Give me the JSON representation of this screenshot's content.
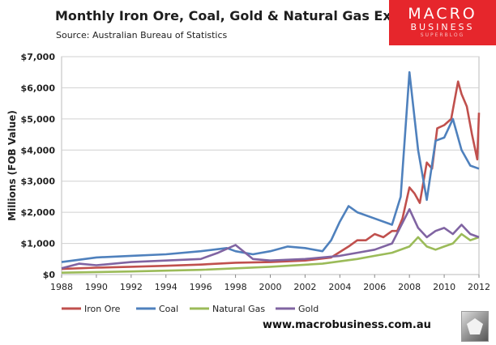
{
  "header": {
    "title": "Monthly Iron Ore, Coal, Gold & Natural Gas Exports",
    "source": "Source:  Australian Bureau of Statistics"
  },
  "logo": {
    "line1": "MACRO",
    "line2": "BUSINESS",
    "line3": "SUPERBLOG"
  },
  "footer": {
    "url": "www.macrobusiness.com.au"
  },
  "badge": {
    "icon": "wolf-icon"
  },
  "chart_data": {
    "type": "line",
    "title": "Monthly Iron Ore, Coal, Gold & Natural Gas Exports",
    "ylabel": "Millions (FOB Value)",
    "xlabel": "",
    "xlim": [
      1988,
      2012
    ],
    "ylim": [
      0,
      7000
    ],
    "x_ticks": [
      1988,
      1990,
      1992,
      1994,
      1996,
      1998,
      2000,
      2002,
      2004,
      2006,
      2008,
      2010,
      2012
    ],
    "y_ticks": [
      0,
      1000,
      2000,
      3000,
      4000,
      5000,
      6000,
      7000
    ],
    "y_tick_labels": [
      "$0",
      "$1,000",
      "$2,000",
      "$3,000",
      "$4,000",
      "$5,000",
      "$6,000",
      "$7,000"
    ],
    "grid": "horizontal",
    "legend": "bottom",
    "series": [
      {
        "name": "Iron Ore",
        "color": "#c0504d",
        "x": [
          1988,
          1990,
          1992,
          1994,
          1996,
          1998,
          2000,
          2002,
          2003.5,
          2004.5,
          2005,
          2005.5,
          2006,
          2006.5,
          2007,
          2007.3,
          2007.6,
          2008,
          2008.3,
          2008.6,
          2009,
          2009.3,
          2009.6,
          2010,
          2010.4,
          2010.8,
          2011,
          2011.3,
          2011.6,
          2011.9,
          2012
        ],
        "values": [
          180,
          220,
          250,
          280,
          320,
          380,
          400,
          450,
          550,
          900,
          1100,
          1100,
          1300,
          1200,
          1400,
          1400,
          1800,
          2800,
          2600,
          2300,
          3600,
          3400,
          4700,
          4800,
          5000,
          6200,
          5800,
          5400,
          4500,
          3700,
          5200
        ]
      },
      {
        "name": "Coal",
        "color": "#4f81bd",
        "x": [
          1988,
          1990,
          1992,
          1994,
          1996,
          1997.5,
          1998,
          1999,
          2000,
          2001,
          2002,
          2003,
          2003.5,
          2004,
          2004.5,
          2005,
          2006,
          2007,
          2007.5,
          2008,
          2008.5,
          2009,
          2009.5,
          2010,
          2010.5,
          2011,
          2011.5,
          2012
        ],
        "values": [
          400,
          550,
          600,
          650,
          750,
          850,
          750,
          650,
          750,
          900,
          850,
          750,
          1100,
          1700,
          2200,
          2000,
          1800,
          1600,
          2500,
          6500,
          4000,
          2400,
          4300,
          4400,
          5000,
          4000,
          3500,
          3400
        ]
      },
      {
        "name": "Natural Gas",
        "color": "#9bbb59",
        "x": [
          1988,
          1992,
          1996,
          2000,
          2003,
          2005,
          2006,
          2007,
          2008,
          2008.5,
          2009,
          2009.5,
          2010,
          2010.5,
          2011,
          2011.5,
          2012
        ],
        "values": [
          60,
          100,
          150,
          250,
          350,
          500,
          600,
          700,
          900,
          1200,
          900,
          800,
          900,
          1000,
          1300,
          1100,
          1200
        ]
      },
      {
        "name": "Gold",
        "color": "#8064a2",
        "x": [
          1988,
          1989,
          1990,
          1992,
          1994,
          1996,
          1997,
          1998,
          1999,
          2000,
          2002,
          2004,
          2005,
          2006,
          2007,
          2008,
          2008.5,
          2009,
          2009.5,
          2010,
          2010.5,
          2011,
          2011.5,
          2012
        ],
        "values": [
          200,
          350,
          300,
          400,
          450,
          500,
          700,
          950,
          500,
          450,
          500,
          600,
          700,
          800,
          1000,
          2100,
          1500,
          1200,
          1400,
          1500,
          1300,
          1600,
          1300,
          1200
        ]
      }
    ]
  }
}
